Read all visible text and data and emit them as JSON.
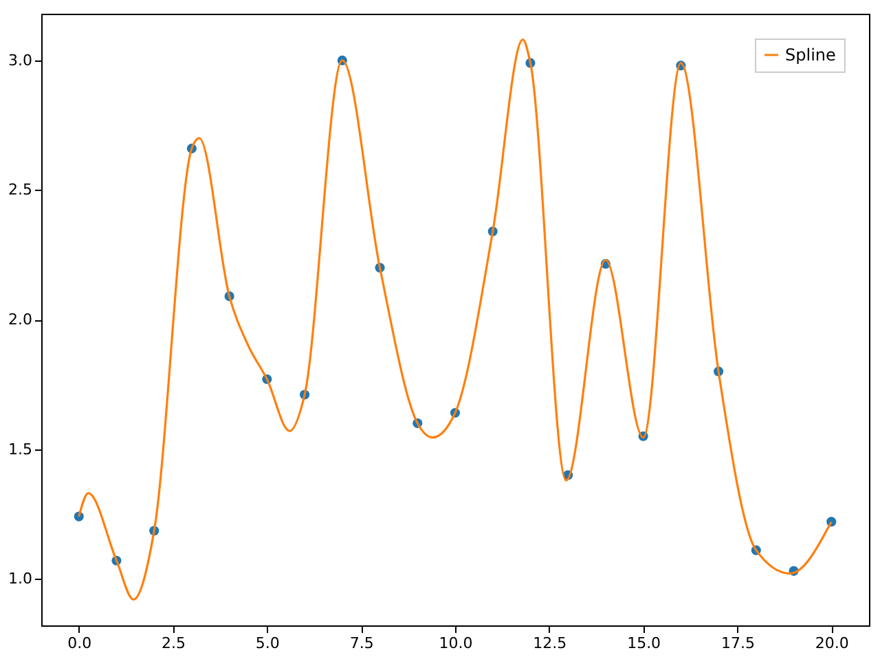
{
  "chart_data": {
    "type": "scatter",
    "series": [
      {
        "color": "#1f77b4",
        "marker": "circle",
        "x": [
          0,
          1,
          2,
          3,
          4,
          5,
          6,
          7,
          8,
          9,
          10,
          11,
          12,
          13,
          14,
          15,
          16,
          17,
          18,
          19,
          20
        ],
        "values": [
          1.24,
          1.07,
          1.185,
          2.66,
          2.09,
          1.77,
          1.71,
          3.0,
          2.2,
          1.6,
          1.64,
          2.34,
          2.99,
          1.4,
          2.215,
          1.55,
          2.98,
          1.8,
          1.11,
          1.03,
          1.22
        ]
      },
      {
        "type": "line",
        "name": "Spline",
        "color": "#ff7f0e",
        "marker": "none",
        "line_style": "solid",
        "x": [
          0,
          0.25,
          1,
          1.45,
          2,
          3,
          3.2,
          4,
          4.5,
          5,
          5.6,
          6,
          7,
          8,
          9,
          9.4,
          10,
          11,
          11.8,
          12,
          12.95,
          14,
          15,
          16,
          17,
          18,
          18.9,
          20
        ],
        "values": [
          1.24,
          1.33,
          1.07,
          0.92,
          1.185,
          2.66,
          2.7,
          2.09,
          1.9,
          1.77,
          1.57,
          1.71,
          3.0,
          2.2,
          1.6,
          1.545,
          1.64,
          2.34,
          3.08,
          2.99,
          1.38,
          2.23,
          1.545,
          2.99,
          1.8,
          1.11,
          1.02,
          1.22
        ]
      }
    ],
    "xlim": [
      -1.0,
      21.0
    ],
    "ylim": [
      0.82,
      3.18
    ],
    "xticks": [
      {
        "value": 0,
        "label": "0.0"
      },
      {
        "value": 2.5,
        "label": "2.5"
      },
      {
        "value": 5,
        "label": "5.0"
      },
      {
        "value": 7.5,
        "label": "7.5"
      },
      {
        "value": 10,
        "label": "10.0"
      },
      {
        "value": 12.5,
        "label": "12.5"
      },
      {
        "value": 15,
        "label": "15.0"
      },
      {
        "value": 17.5,
        "label": "17.5"
      },
      {
        "value": 20,
        "label": "20.0"
      }
    ],
    "yticks": [
      {
        "value": 1,
        "label": "1.0"
      },
      {
        "value": 1.5,
        "label": "1.5"
      },
      {
        "value": 2,
        "label": "2.0"
      },
      {
        "value": 2.5,
        "label": "2.5"
      },
      {
        "value": 3,
        "label": "3.0"
      }
    ],
    "legend": "top right",
    "grid": false
  }
}
